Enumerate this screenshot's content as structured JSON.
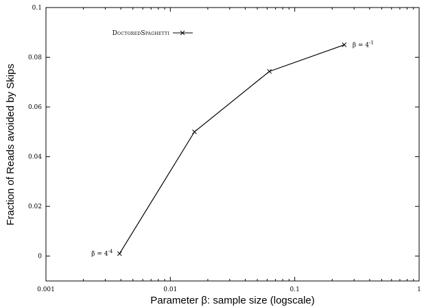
{
  "chart_data": {
    "type": "line",
    "xscale": "log",
    "xlim": [
      0.001,
      1
    ],
    "ylim": [
      -0.01,
      0.1
    ],
    "xlabel": "Parameter β: sample size (logscale)",
    "ylabel": "Fraction of Reads avoided by Skips",
    "x_ticks": [
      {
        "value": 0.001,
        "label": "0.001"
      },
      {
        "value": 0.01,
        "label": "0.01"
      },
      {
        "value": 0.1,
        "label": "0.1"
      },
      {
        "value": 1,
        "label": "1"
      }
    ],
    "y_ticks": [
      {
        "value": 0,
        "label": "0"
      },
      {
        "value": 0.02,
        "label": "0.02"
      },
      {
        "value": 0.04,
        "label": "0.04"
      },
      {
        "value": 0.06,
        "label": "0.06"
      },
      {
        "value": 0.08,
        "label": "0.08"
      },
      {
        "value": 0.1,
        "label": "0.1"
      }
    ],
    "series": [
      {
        "name": "DoctoredSpaghetti",
        "marker": "x",
        "x": [
          0.00390625,
          0.015625,
          0.0625,
          0.25
        ],
        "y": [
          0.001,
          0.05,
          0.0743,
          0.085
        ]
      }
    ],
    "annotations": [
      {
        "base": "β = 4",
        "exp": "-4",
        "x": 0.00390625,
        "y": 0.001,
        "side": "left"
      },
      {
        "base": "β = 4",
        "exp": "-1",
        "x": 0.25,
        "y": 0.085,
        "side": "right"
      }
    ],
    "legend_position": "top-left",
    "grid": false
  }
}
